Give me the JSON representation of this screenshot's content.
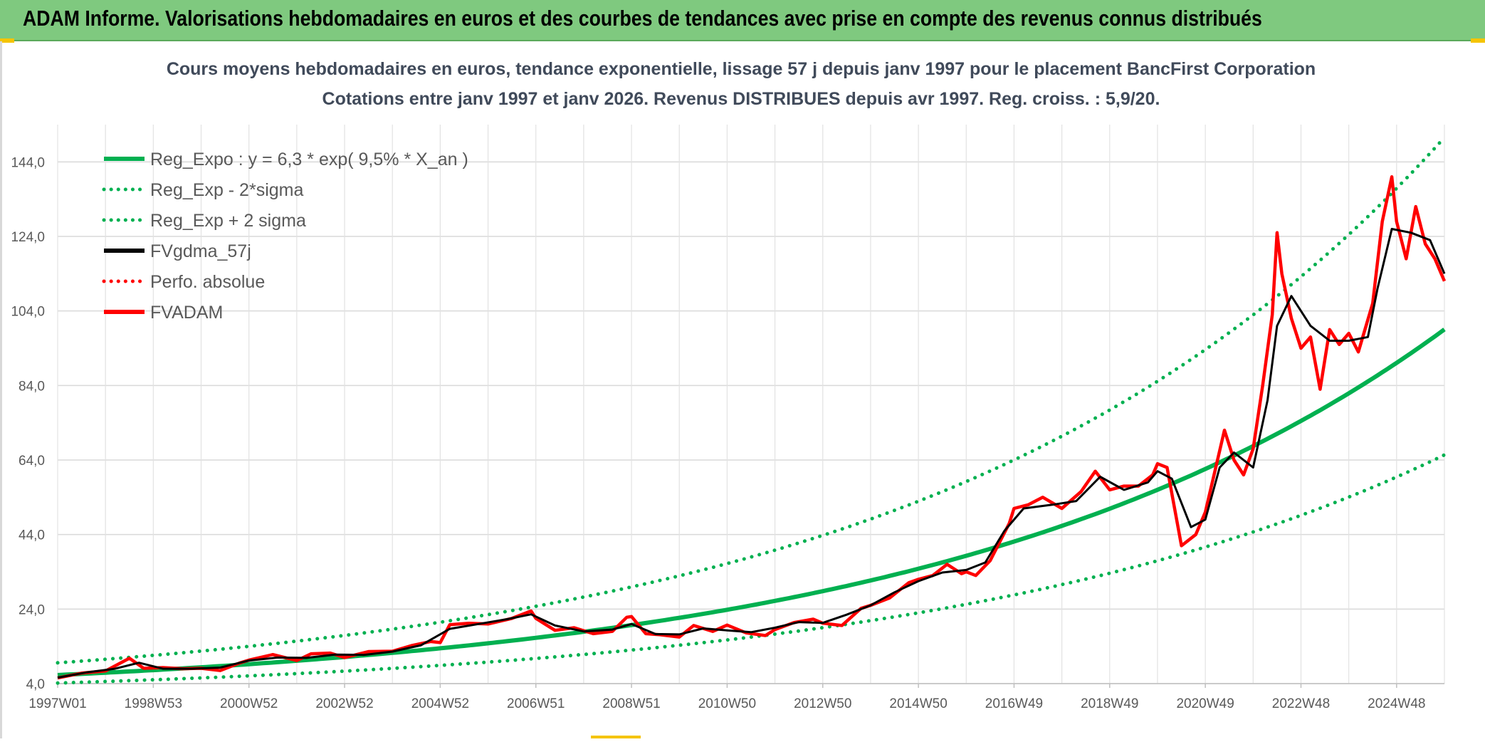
{
  "header": {
    "title": "ADAM Informe. Valorisations hebdomadaires en euros et des courbes de tendances avec prise en compte des revenus connus distribués"
  },
  "chart_data": {
    "type": "line",
    "title_line1": "Cours moyens hebdomadaires en euros, tendance exponentielle, lissage 57 j depuis janv 1997 pour le placement BancFirst Corporation",
    "title_line2": "Cotations entre janv 1997 et janv 2026. Revenus DISTRIBUES depuis avr 1997. Reg. croiss. : 5,9/20.",
    "xlabel": "",
    "ylabel": "",
    "xlim": [
      1997.0,
      2026.0
    ],
    "ylim": [
      4.0,
      154.0
    ],
    "y_ticks": [
      4.0,
      24.0,
      44.0,
      64.0,
      84.0,
      104.0,
      124.0,
      144.0
    ],
    "y_tick_labels": [
      "4,0",
      "24,0",
      "44,0",
      "64,0",
      "84,0",
      "104,0",
      "124,0",
      "144,0"
    ],
    "x_ticks": [
      1997.0,
      1999.0,
      2001.0,
      2003.0,
      2005.0,
      2007.0,
      2009.0,
      2011.0,
      2013.0,
      2015.0,
      2017.0,
      2019.0,
      2021.0,
      2023.0,
      2025.0
    ],
    "x_tick_labels": [
      "1997W01",
      "1998W53",
      "2000W52",
      "2002W52",
      "2004W52",
      "2006W51",
      "2008W51",
      "2010W50",
      "2012W50",
      "2014W50",
      "2016W49",
      "2018W49",
      "2020W49",
      "2022W48",
      "2024W48"
    ],
    "grid": true,
    "legend_position": "top-left",
    "legend": [
      {
        "label": "Reg_Expo : y = 6,3 * exp( 9,5% *  X_an )",
        "color": "#00b050",
        "style": "solid"
      },
      {
        "label": "Reg_Exp - 2*sigma",
        "color": "#00b050",
        "style": "dotted"
      },
      {
        "label": "Reg_Exp + 2 sigma",
        "color": "#00b050",
        "style": "dotted"
      },
      {
        "label": "FVgdma_57j",
        "color": "#000000",
        "style": "solid"
      },
      {
        "label": "Perfo. absolue",
        "color": "#ff0000",
        "style": "dotted"
      },
      {
        "label": "FVADAM",
        "color": "#ff0000",
        "style": "solid"
      }
    ],
    "regression": {
      "a": 6.3,
      "rate": 0.095,
      "x0": 1997.0,
      "lower_factor": 0.66,
      "upper_factor": 1.52
    },
    "series": [
      {
        "name": "FVADAM",
        "color": "#ff0000",
        "x": [
          1997.0,
          1997.5,
          1998.0,
          1998.5,
          1998.8,
          1999.2,
          1999.6,
          2000.0,
          2000.4,
          2000.8,
          2001.0,
          2001.5,
          2002.0,
          2002.3,
          2002.7,
          2003.0,
          2003.5,
          2004.0,
          2004.4,
          2004.8,
          2005.0,
          2005.2,
          2005.6,
          2006.0,
          2006.5,
          2006.9,
          2007.0,
          2007.4,
          2007.8,
          2008.2,
          2008.6,
          2008.9,
          2009.0,
          2009.3,
          2009.6,
          2010.0,
          2010.3,
          2010.7,
          2011.0,
          2011.4,
          2011.8,
          2012.0,
          2012.4,
          2012.8,
          2013.0,
          2013.4,
          2013.8,
          2014.0,
          2014.4,
          2014.8,
          2015.0,
          2015.3,
          2015.6,
          2015.9,
          2016.0,
          2016.2,
          2016.5,
          2016.9,
          2017.0,
          2017.3,
          2017.6,
          2018.0,
          2018.4,
          2018.7,
          2019.0,
          2019.3,
          2019.6,
          2019.9,
          2020.0,
          2020.2,
          2020.5,
          2020.8,
          2021.0,
          2021.2,
          2021.4,
          2021.6,
          2021.8,
          2022.0,
          2022.2,
          2022.4,
          2022.5,
          2022.6,
          2022.8,
          2023.0,
          2023.2,
          2023.4,
          2023.6,
          2023.8,
          2024.0,
          2024.2,
          2024.5,
          2024.7,
          2024.9,
          2025.0,
          2025.2,
          2025.4,
          2025.6,
          2025.8,
          2026.0
        ],
        "values": [
          5.5,
          6.8,
          7.4,
          10.8,
          8.1,
          8.3,
          8.0,
          8.1,
          7.5,
          9.5,
          10.3,
          11.8,
          10.2,
          12.0,
          12.2,
          11.0,
          12.6,
          12.7,
          14.2,
          15.3,
          15.0,
          19.8,
          20.2,
          20.0,
          21.5,
          23.5,
          21.5,
          18.3,
          19.0,
          17.4,
          18.0,
          21.8,
          22.0,
          17.4,
          17.1,
          16.5,
          19.6,
          18.0,
          19.7,
          17.6,
          16.9,
          18.5,
          20.4,
          21.3,
          20.2,
          19.6,
          24.2,
          25.0,
          27.0,
          31.1,
          32.0,
          33.0,
          36.0,
          33.5,
          34.0,
          33.0,
          37.0,
          47.0,
          51.0,
          52.0,
          54.0,
          51.0,
          55.5,
          61.0,
          56.0,
          57.0,
          57.0,
          60.0,
          63.0,
          62.0,
          41.0,
          44.0,
          50.0,
          61.0,
          72.0,
          64.0,
          60.0,
          67.0,
          84.0,
          103.0,
          125.0,
          114.0,
          102.0,
          94.0,
          97.0,
          83.0,
          99.0,
          95.0,
          98.0,
          93.0,
          106.0,
          128.0,
          140.0,
          128.0,
          118.0,
          132.0,
          122.0,
          118.0,
          112.0
        ]
      },
      {
        "name": "FVgdma_57j",
        "color": "#000000",
        "x": [
          1997.0,
          1997.6,
          1998.2,
          1998.7,
          1999.2,
          1999.8,
          2000.4,
          2001.0,
          2001.6,
          2002.2,
          2002.8,
          2003.4,
          2004.0,
          2004.6,
          2005.2,
          2005.8,
          2006.4,
          2006.9,
          2007.4,
          2008.0,
          2008.6,
          2009.0,
          2009.5,
          2010.0,
          2010.5,
          2011.0,
          2011.5,
          2012.0,
          2012.5,
          2013.0,
          2013.5,
          2014.0,
          2014.5,
          2015.0,
          2015.5,
          2016.0,
          2016.4,
          2016.8,
          2017.2,
          2017.8,
          2018.3,
          2018.8,
          2019.3,
          2019.8,
          2020.0,
          2020.3,
          2020.7,
          2021.0,
          2021.3,
          2021.6,
          2022.0,
          2022.3,
          2022.5,
          2022.8,
          2023.2,
          2023.6,
          2024.0,
          2024.4,
          2024.6,
          2024.9,
          2025.3,
          2025.7,
          2026.0
        ],
        "values": [
          5.6,
          7.0,
          8.0,
          9.6,
          8.0,
          8.0,
          8.3,
          10.2,
          11.0,
          10.9,
          11.8,
          11.7,
          12.6,
          14.3,
          18.7,
          20.0,
          21.3,
          22.6,
          19.6,
          18.0,
          18.5,
          20.0,
          17.3,
          17.2,
          18.8,
          18.3,
          17.8,
          19.0,
          20.5,
          20.3,
          22.5,
          25.0,
          28.5,
          31.5,
          33.8,
          34.5,
          36.5,
          45.0,
          51.0,
          52.0,
          53.0,
          59.5,
          56.0,
          58.0,
          61.0,
          59.0,
          46.0,
          48.0,
          62.0,
          66.0,
          62.0,
          80.0,
          100.0,
          108.0,
          100.0,
          96.0,
          96.0,
          97.0,
          110.0,
          126.0,
          125.0,
          123.0,
          114.0
        ]
      }
    ]
  }
}
